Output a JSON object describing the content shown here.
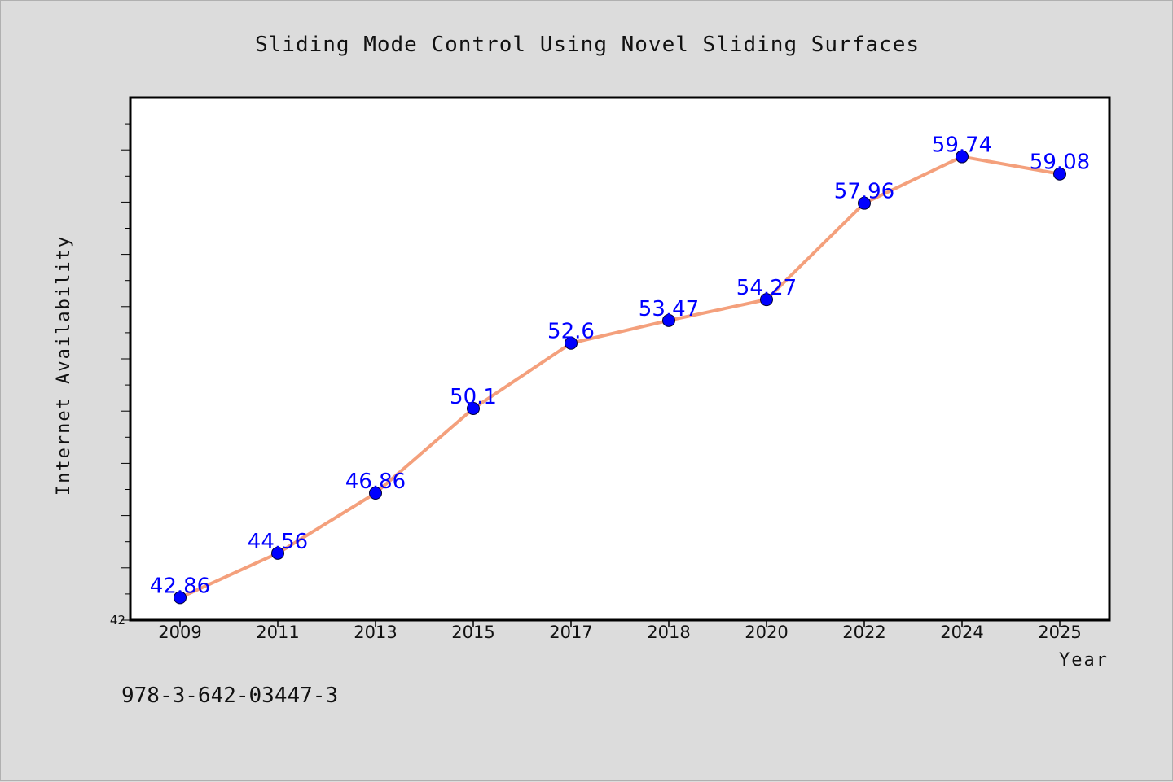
{
  "chart_data": {
    "type": "line",
    "title": "Sliding Mode Control Using Novel Sliding Surfaces",
    "xlabel": "Year",
    "ylabel": "Internet Availability",
    "categories": [
      "2009",
      "2011",
      "2013",
      "2015",
      "2017",
      "2018",
      "2020",
      "2022",
      "2024",
      "2025"
    ],
    "series": [
      {
        "values": [
          42.86,
          44.56,
          46.86,
          50.1,
          52.6,
          53.47,
          54.27,
          57.96,
          59.74,
          59.08
        ],
        "labels": [
          "42.86",
          "44.56",
          "46.86",
          "50.1",
          "52.6",
          "53.47",
          "54.27",
          "57.96",
          "59.74",
          "59.08"
        ],
        "line_color": "#f4a07c",
        "marker_color": "#0000ff"
      }
    ],
    "ylim": [
      42,
      62
    ],
    "y_tick_labels": [
      "42"
    ],
    "grid": false,
    "legend": "none"
  },
  "footnote": "978-3-642-03447-3"
}
